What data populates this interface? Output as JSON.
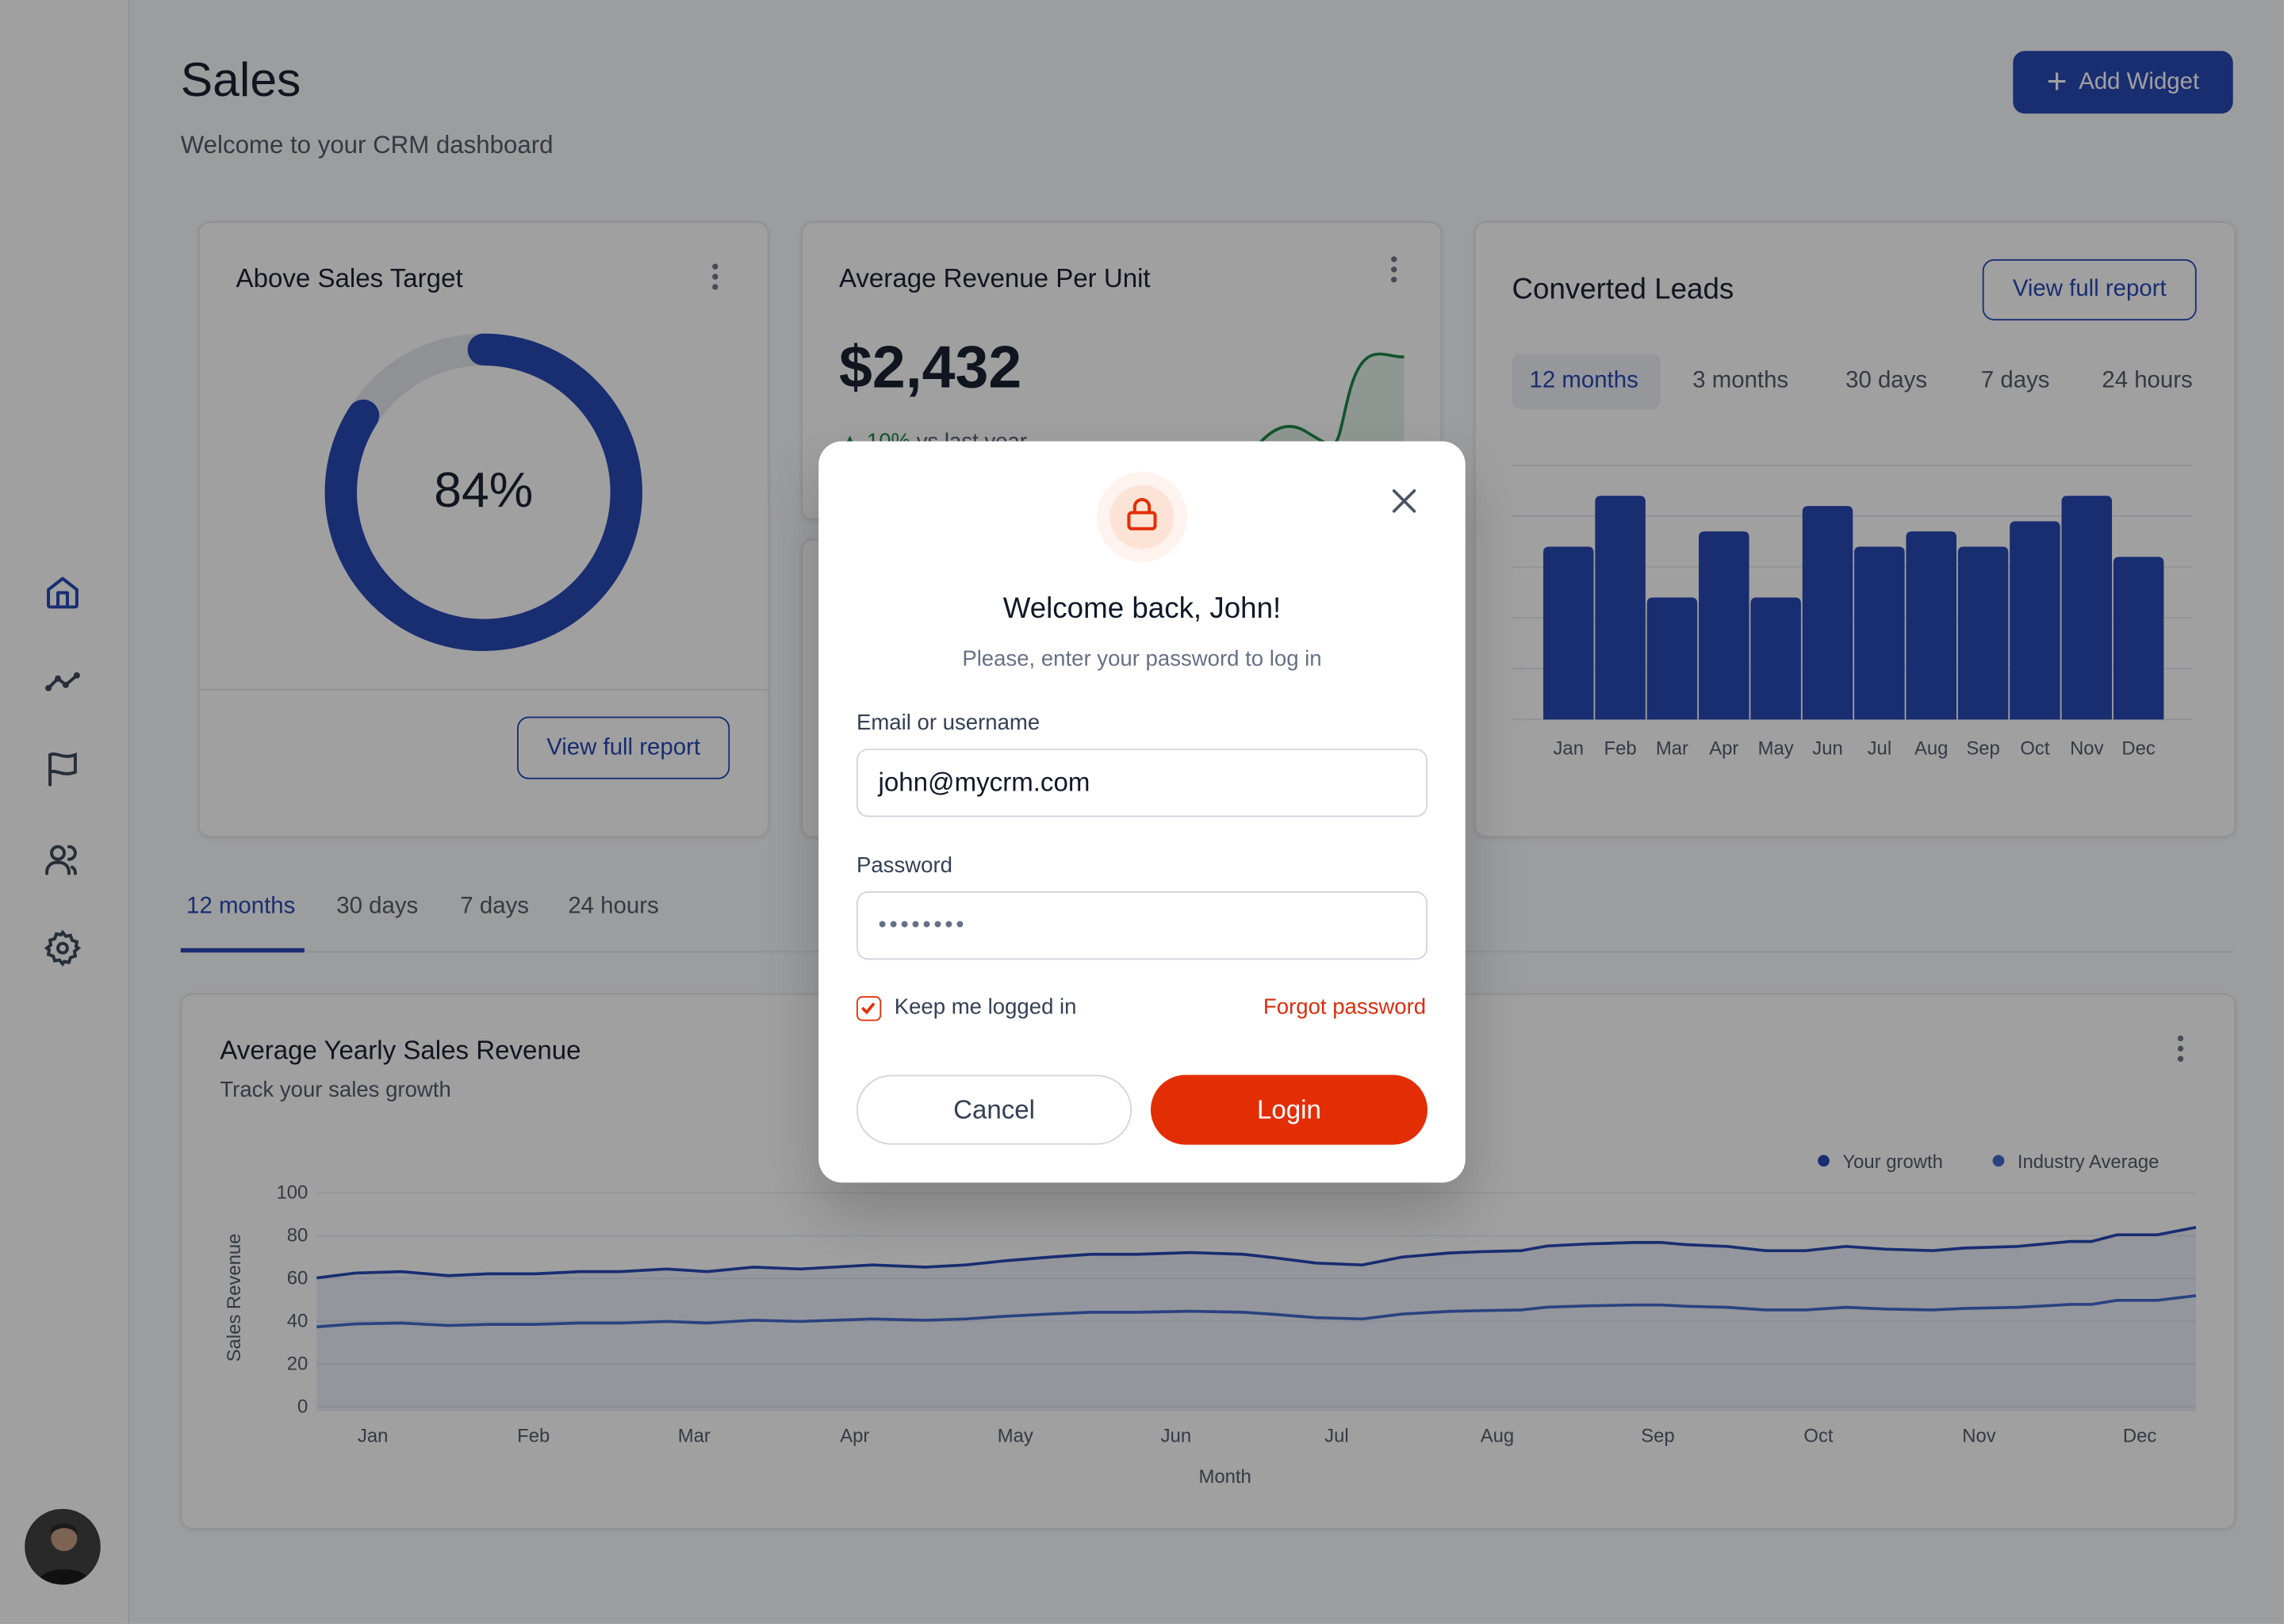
{
  "sidebar": {
    "items": [
      {
        "icon": "home-icon",
        "active": true
      },
      {
        "icon": "trend-icon"
      },
      {
        "icon": "flag-icon"
      },
      {
        "icon": "users-icon"
      },
      {
        "icon": "gear-icon"
      }
    ],
    "avatar": "user-avatar"
  },
  "header": {
    "title": "Sales",
    "subtitle": "Welcome to your CRM dashboard",
    "add_widget_label": "Add Widget"
  },
  "colors": {
    "primary": "#1e40af",
    "danger": "#e32e05",
    "success": "#15803d"
  },
  "sales_target_card": {
    "title": "Above Sales Target",
    "percent": 84,
    "percent_label": "84%",
    "button": "View full report"
  },
  "arpu_card": {
    "title": "Average Revenue Per Unit",
    "value": "$2,432",
    "change": "10%",
    "change_label": "vs last year"
  },
  "leads_card": {
    "title": "Converted Leads",
    "button": "View full report",
    "tabs": [
      "12 months",
      "3 months",
      "30 days",
      "7 days",
      "24 hours"
    ],
    "active_tab": 0
  },
  "period_tabs": {
    "tabs": [
      "12 months",
      "30 days",
      "7 days",
      "24 hours"
    ],
    "active": 0
  },
  "revenue_card": {
    "title": "Average Yearly Sales Revenue",
    "subtitle": "Track your sales growth"
  },
  "chart_data": [
    {
      "type": "bar",
      "categories": [
        "Jan",
        "Feb",
        "Mar",
        "Apr",
        "May",
        "Jun",
        "Jul",
        "Aug",
        "Sep",
        "Oct",
        "Nov",
        "Dec"
      ],
      "values": [
        3.4,
        4.4,
        2.4,
        3.7,
        2.4,
        4.2,
        3.4,
        3.7,
        3.4,
        3.9,
        4.4,
        3.2
      ],
      "ylim": [
        0,
        5
      ],
      "grid": true,
      "color": "#1e40af"
    },
    {
      "type": "area",
      "xlabel": "Month",
      "ylabel": "Sales Revenue",
      "ylim": [
        0,
        100
      ],
      "yticks": [
        0,
        20,
        40,
        60,
        80,
        100
      ],
      "categories": [
        "Jan",
        "Feb",
        "Mar",
        "Apr",
        "May",
        "Jun",
        "Jul",
        "Aug",
        "Sep",
        "Oct",
        "Nov",
        "Dec"
      ],
      "grid": true,
      "legend": "top-right",
      "x": [
        0.65,
        0.89,
        1.18,
        1.47,
        1.72,
        2.01,
        2.29,
        2.54,
        2.83,
        3.08,
        3.37,
        3.66,
        4.11,
        4.44,
        4.69,
        4.93,
        5.22,
        5.47,
        5.76,
        6.09,
        6.42,
        6.62,
        6.87,
        7.16,
        7.41,
        7.7,
        7.9,
        8.15,
        8.31,
        8.56,
        8.85,
        9.02,
        9.18,
        9.43,
        9.67,
        9.92,
        10.17,
        10.42,
        10.71,
        10.91,
        11.24,
        11.41,
        11.57,
        11.7,
        11.86,
        12.11,
        12.35
      ],
      "series": [
        {
          "name": "Your growth",
          "color": "#1e40af",
          "values": [
            60.3,
            62.5,
            63.2,
            61.3,
            62.2,
            62.2,
            63.2,
            63.2,
            64.4,
            63.2,
            65.3,
            64.4,
            66.3,
            65.3,
            66.3,
            68.2,
            70.0,
            71.3,
            71.3,
            72.1,
            71.3,
            69.6,
            67.2,
            66.3,
            70.0,
            71.9,
            72.5,
            73.0,
            75.2,
            76.1,
            76.8,
            76.8,
            75.8,
            75.0,
            73.0,
            73.0,
            75.0,
            73.7,
            73.0,
            74.2,
            75.0,
            76.2,
            77.3,
            77.3,
            80.4,
            80.4,
            83.9
          ]
        },
        {
          "name": "Industry Average",
          "color": "#3b63c9",
          "values": [
            37.4,
            38.8,
            39.2,
            38.0,
            38.6,
            38.6,
            39.2,
            39.2,
            39.9,
            39.2,
            40.5,
            39.9,
            41.1,
            40.5,
            41.1,
            42.3,
            43.4,
            44.2,
            44.2,
            44.7,
            44.2,
            43.2,
            41.7,
            41.1,
            43.4,
            44.6,
            45.0,
            45.3,
            46.6,
            47.2,
            47.6,
            47.6,
            47.0,
            46.5,
            45.3,
            45.3,
            46.5,
            45.7,
            45.3,
            46.0,
            46.5,
            47.2,
            47.9,
            47.9,
            49.8,
            49.8,
            52.0
          ]
        }
      ]
    }
  ],
  "login_modal": {
    "title": "Welcome back, John!",
    "subtitle": "Please, enter your password to log in",
    "email_label": "Email or username",
    "email_value": "john@mycrm.com",
    "password_label": "Password",
    "password_value": "••••••••",
    "remember_label": "Keep me logged in",
    "remember_checked": true,
    "forgot_label": "Forgot password",
    "cancel_label": "Cancel",
    "login_label": "Login"
  }
}
